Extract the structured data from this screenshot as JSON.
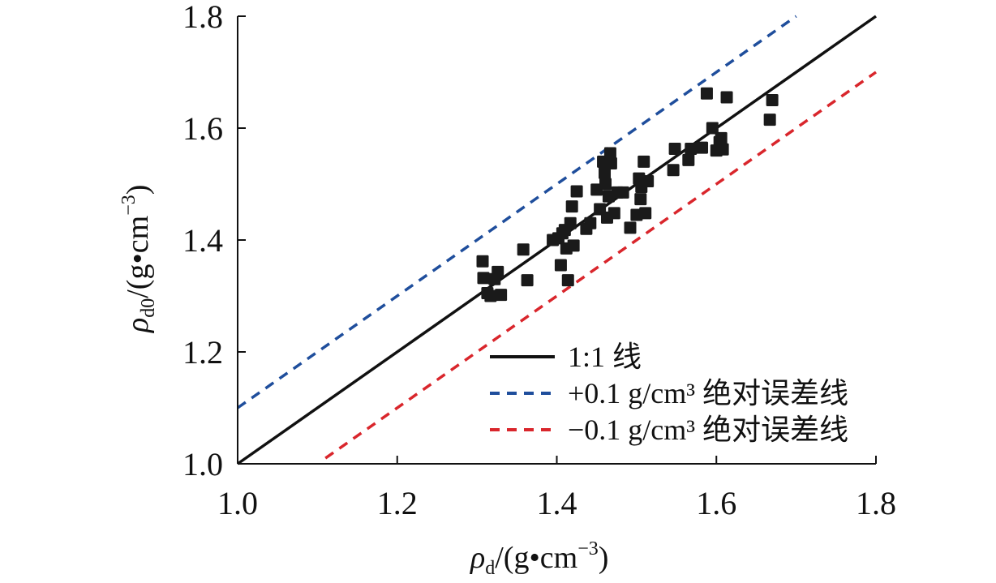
{
  "chart_data": {
    "type": "scatter",
    "xlim": [
      1.0,
      1.8
    ],
    "ylim": [
      1.0,
      1.8
    ],
    "x_ticks": [
      "1.0",
      "1.2",
      "1.4",
      "1.6",
      "1.8"
    ],
    "y_ticks": [
      "1.0",
      "1.2",
      "1.4",
      "1.6",
      "1.8"
    ],
    "xlabel": {
      "symbol": "ρ",
      "sub": "d",
      "rest": "/(g•cm",
      "sup": "−3",
      "close": ")"
    },
    "ylabel": {
      "symbol": "ρ",
      "sub": "d0",
      "rest": "/(g•cm",
      "sup": "−3",
      "close": ")"
    },
    "grid": false,
    "legend_position": "bottom-right",
    "lines": [
      {
        "name": "1:1 线",
        "offset": 0.0,
        "x_range": [
          1.0,
          1.8
        ],
        "color": "#111111",
        "dashed": false
      },
      {
        "name": "+0.1 g/cm³ 绝对误差线",
        "offset": 0.1,
        "x_range": [
          1.0,
          1.7
        ],
        "color": "#1f4e9c",
        "dashed": true
      },
      {
        "name": "−0.1 g/cm³ 绝对误差线",
        "offset": -0.1,
        "x_range": [
          1.11,
          1.8
        ],
        "color": "#d9262c",
        "dashed": true
      }
    ],
    "points": [
      {
        "x": 1.307,
        "y": 1.362
      },
      {
        "x": 1.308,
        "y": 1.332
      },
      {
        "x": 1.313,
        "y": 1.305
      },
      {
        "x": 1.317,
        "y": 1.3
      },
      {
        "x": 1.322,
        "y": 1.33
      },
      {
        "x": 1.326,
        "y": 1.343
      },
      {
        "x": 1.33,
        "y": 1.302
      },
      {
        "x": 1.358,
        "y": 1.383
      },
      {
        "x": 1.363,
        "y": 1.328
      },
      {
        "x": 1.395,
        "y": 1.4
      },
      {
        "x": 1.402,
        "y": 1.403
      },
      {
        "x": 1.405,
        "y": 1.355
      },
      {
        "x": 1.407,
        "y": 1.412
      },
      {
        "x": 1.41,
        "y": 1.418
      },
      {
        "x": 1.412,
        "y": 1.385
      },
      {
        "x": 1.414,
        "y": 1.328
      },
      {
        "x": 1.417,
        "y": 1.43
      },
      {
        "x": 1.419,
        "y": 1.46
      },
      {
        "x": 1.421,
        "y": 1.39
      },
      {
        "x": 1.425,
        "y": 1.487
      },
      {
        "x": 1.437,
        "y": 1.42
      },
      {
        "x": 1.442,
        "y": 1.43
      },
      {
        "x": 1.45,
        "y": 1.49
      },
      {
        "x": 1.454,
        "y": 1.455
      },
      {
        "x": 1.458,
        "y": 1.54
      },
      {
        "x": 1.46,
        "y": 1.52
      },
      {
        "x": 1.461,
        "y": 1.5
      },
      {
        "x": 1.463,
        "y": 1.44
      },
      {
        "x": 1.465,
        "y": 1.478
      },
      {
        "x": 1.467,
        "y": 1.555
      },
      {
        "x": 1.468,
        "y": 1.537
      },
      {
        "x": 1.472,
        "y": 1.448
      },
      {
        "x": 1.476,
        "y": 1.485
      },
      {
        "x": 1.483,
        "y": 1.485
      },
      {
        "x": 1.492,
        "y": 1.422
      },
      {
        "x": 1.5,
        "y": 1.445
      },
      {
        "x": 1.503,
        "y": 1.51
      },
      {
        "x": 1.505,
        "y": 1.473
      },
      {
        "x": 1.506,
        "y": 1.495
      },
      {
        "x": 1.509,
        "y": 1.54
      },
      {
        "x": 1.511,
        "y": 1.448
      },
      {
        "x": 1.514,
        "y": 1.505
      },
      {
        "x": 1.546,
        "y": 1.525
      },
      {
        "x": 1.548,
        "y": 1.563
      },
      {
        "x": 1.565,
        "y": 1.543
      },
      {
        "x": 1.568,
        "y": 1.563
      },
      {
        "x": 1.582,
        "y": 1.565
      },
      {
        "x": 1.588,
        "y": 1.662
      },
      {
        "x": 1.595,
        "y": 1.6
      },
      {
        "x": 1.6,
        "y": 1.56
      },
      {
        "x": 1.604,
        "y": 1.575
      },
      {
        "x": 1.606,
        "y": 1.582
      },
      {
        "x": 1.608,
        "y": 1.562
      },
      {
        "x": 1.613,
        "y": 1.655
      },
      {
        "x": 1.667,
        "y": 1.615
      },
      {
        "x": 1.67,
        "y": 1.65
      }
    ]
  }
}
